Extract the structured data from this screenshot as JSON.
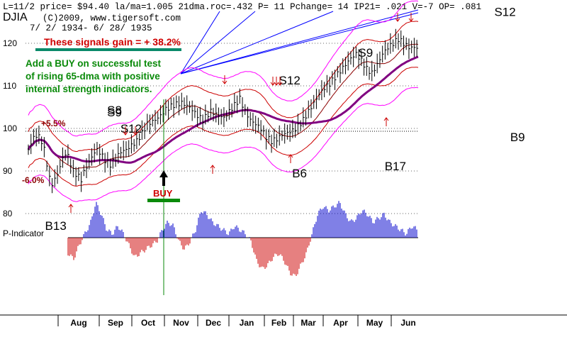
{
  "header": {
    "line1": "L=11/2  price= $94.40  la/ma=1.005 21dma.roc=.432  P=  11  Pchange=  14  IP21= .021  V=-7  OP= .081",
    "title": "DJIA",
    "copyright": "(C)2009, www.tigersoft.com",
    "range": "7/ 2/ 1934- 6/ 28/ 1935"
  },
  "annotations": {
    "gain": "These signals gain = + 38.2%",
    "note1": "Add a BUY on successful test",
    "note2": "of rising 65-dma with positive",
    "note3": "internal strength indicators.",
    "pct_up": "+5.5%",
    "pct_down": "-6.0%",
    "buy": "BUY",
    "p_indicator": "P-Indicator"
  },
  "signals": [
    {
      "label": "S9",
      "date": 65,
      "price": 102.8
    },
    {
      "label": "S8",
      "date": 65,
      "price": 103.3
    },
    {
      "label": "S12",
      "date": 75,
      "price": 99.0
    },
    {
      "label": "S12",
      "date": 195,
      "price": 110.3
    },
    {
      "label": "S9",
      "date": 255,
      "price": 116.8
    },
    {
      "label": "S12",
      "date": 358,
      "price": 126.4
    },
    {
      "label": "B13",
      "date": 18,
      "price": 76.2
    },
    {
      "label": "B6",
      "date": 205,
      "price": 88.5
    },
    {
      "label": "B17",
      "date": 275,
      "price": 90.2
    },
    {
      "label": "B9",
      "date": 370,
      "price": 97.0
    }
  ],
  "colors": {
    "price": "#000000",
    "ma21": "#8b0000",
    "ma65": "#800080",
    "bands_inner": "#cc0000",
    "bands_outer": "#ff00ff",
    "pind_pos": "#0000cc",
    "pind_neg": "#cc0000",
    "trend_lines": "#0000ff",
    "note": "#0a8a0a",
    "gain_text": "#d00000"
  },
  "chart_data": {
    "type": "line",
    "title": "DJIA",
    "xlabel": "",
    "ylabel": "",
    "ylim": [
      80,
      126
    ],
    "yticks": [
      80,
      90,
      100,
      110,
      120
    ],
    "months": [
      "Aug",
      "Sep",
      "Oct",
      "Nov",
      "Dec",
      "Jan",
      "Feb",
      "Mar",
      "Apr",
      "May",
      "Jun"
    ],
    "month_starts": [
      0,
      26,
      51,
      77,
      104,
      128,
      159,
      186,
      212,
      241,
      272,
      300,
      373
    ],
    "price_anchors": [
      [
        0,
        95.0
      ],
      [
        2,
        96.5
      ],
      [
        5,
        98.5
      ],
      [
        8,
        98.0
      ],
      [
        11,
        96.5
      ],
      [
        13,
        93.5
      ],
      [
        15,
        90.0
      ],
      [
        17,
        86.5
      ],
      [
        20,
        88.0
      ],
      [
        23,
        90.0
      ],
      [
        26,
        93.0
      ],
      [
        29,
        94.5
      ],
      [
        31,
        92.5
      ],
      [
        34,
        90.0
      ],
      [
        37,
        89.0
      ],
      [
        40,
        88.0
      ],
      [
        43,
        90.5
      ],
      [
        46,
        92.0
      ],
      [
        49,
        94.0
      ],
      [
        52,
        95.0
      ],
      [
        55,
        94.0
      ],
      [
        58,
        92.5
      ],
      [
        62,
        91.5
      ],
      [
        66,
        93.0
      ],
      [
        70,
        94.5
      ],
      [
        74,
        95.0
      ],
      [
        78,
        96.0
      ],
      [
        82,
        97.0
      ],
      [
        86,
        99.0
      ],
      [
        90,
        101.0
      ],
      [
        96,
        102.0
      ],
      [
        100,
        103.0
      ],
      [
        104,
        104.5
      ],
      [
        110,
        105.5
      ],
      [
        116,
        106.0
      ],
      [
        122,
        105.0
      ],
      [
        128,
        103.0
      ],
      [
        132,
        102.0
      ],
      [
        138,
        104.0
      ],
      [
        144,
        103.0
      ],
      [
        148,
        102.5
      ],
      [
        152,
        104.0
      ],
      [
        156,
        105.5
      ],
      [
        160,
        107.0
      ],
      [
        164,
        104.0
      ],
      [
        168,
        102.0
      ],
      [
        172,
        101.0
      ],
      [
        176,
        100.0
      ],
      [
        180,
        98.0
      ],
      [
        184,
        97.0
      ],
      [
        188,
        97.5
      ],
      [
        192,
        98.5
      ],
      [
        196,
        99.0
      ],
      [
        200,
        99.5
      ],
      [
        204,
        100.5
      ],
      [
        208,
        102.0
      ],
      [
        212,
        104.0
      ],
      [
        216,
        106.0
      ],
      [
        220,
        108.0
      ],
      [
        224,
        109.5
      ],
      [
        228,
        110.5
      ],
      [
        232,
        112.0
      ],
      [
        236,
        113.5
      ],
      [
        240,
        115.0
      ],
      [
        244,
        116.5
      ],
      [
        248,
        117.5
      ],
      [
        252,
        116.0
      ],
      [
        256,
        114.0
      ],
      [
        260,
        113.0
      ],
      [
        264,
        115.0
      ],
      [
        268,
        117.5
      ],
      [
        272,
        119.0
      ],
      [
        276,
        120.0
      ],
      [
        280,
        121.0
      ],
      [
        284,
        120.0
      ],
      [
        288,
        119.0
      ],
      [
        295,
        119.0
      ]
    ],
    "series": [
      {
        "name": "P-Indicator",
        "values": [
          -40,
          -55,
          -20,
          10,
          35,
          90,
          60,
          20,
          10,
          30,
          10,
          -20,
          -50,
          -40,
          -30,
          -20,
          -10,
          20,
          40,
          30,
          -10,
          -30,
          -10,
          20,
          70,
          60,
          40,
          30,
          20,
          10,
          30,
          20,
          10,
          -10,
          -60,
          -80,
          -70,
          -50,
          -40,
          -60,
          -90,
          -100,
          -70,
          -40,
          10,
          60,
          80,
          70,
          80,
          90,
          60,
          40,
          50,
          70,
          60,
          40,
          50,
          60,
          40,
          30,
          20,
          10,
          30,
          20
        ]
      }
    ]
  }
}
